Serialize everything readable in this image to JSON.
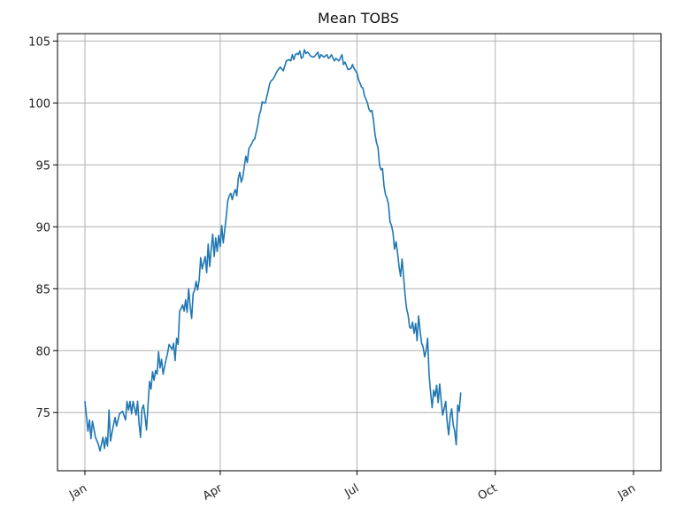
{
  "chart_data": {
    "type": "line",
    "title": "Mean TOBS",
    "xlabel": "",
    "ylabel": "",
    "x_unit": "day_of_year",
    "xlim": [
      1,
      366
    ],
    "ylim": [
      70.3,
      105.6
    ],
    "xticks": [
      {
        "label": "Jan",
        "day": 1
      },
      {
        "label": "Apr",
        "day": 91
      },
      {
        "label": "Jul",
        "day": 182
      },
      {
        "label": "Oct",
        "day": 274
      },
      {
        "label": "Jan",
        "day": 366
      }
    ],
    "yticks": [
      75,
      80,
      85,
      90,
      95,
      100,
      105
    ],
    "grid": true,
    "series": [
      {
        "color": "#1f77b4",
        "points": [
          [
            1,
            75.9
          ],
          [
            3,
            73.5
          ],
          [
            4,
            74.4
          ],
          [
            5,
            72.9
          ],
          [
            6,
            74.3
          ],
          [
            8,
            73.0
          ],
          [
            10,
            72.4
          ],
          [
            11,
            71.9
          ],
          [
            13,
            73.0
          ],
          [
            14,
            72.1
          ],
          [
            15,
            73.0
          ],
          [
            16,
            72.3
          ],
          [
            17,
            75.2
          ],
          [
            18,
            72.7
          ],
          [
            19,
            73.4
          ],
          [
            21,
            74.6
          ],
          [
            22,
            73.9
          ],
          [
            24,
            74.9
          ],
          [
            26,
            75.1
          ],
          [
            28,
            74.4
          ],
          [
            29,
            75.9
          ],
          [
            30,
            75.2
          ],
          [
            31,
            75.9
          ],
          [
            32,
            74.9
          ],
          [
            33,
            75.9
          ],
          [
            35,
            74.8
          ],
          [
            36,
            75.9
          ],
          [
            37,
            74.1
          ],
          [
            38,
            73.0
          ],
          [
            39,
            75.3
          ],
          [
            40,
            75.6
          ],
          [
            41,
            74.7
          ],
          [
            42,
            73.6
          ],
          [
            43,
            75.6
          ],
          [
            44,
            77.5
          ],
          [
            45,
            76.9
          ],
          [
            46,
            78.3
          ],
          [
            47,
            77.6
          ],
          [
            48,
            78.4
          ],
          [
            49,
            78.1
          ],
          [
            50,
            79.9
          ],
          [
            51,
            78.6
          ],
          [
            52,
            79.3
          ],
          [
            53,
            78.1
          ],
          [
            55,
            79.3
          ],
          [
            56,
            79.8
          ],
          [
            57,
            80.5
          ],
          [
            59,
            80.1
          ],
          [
            60,
            80.6
          ],
          [
            61,
            79.2
          ],
          [
            62,
            81.0
          ],
          [
            63,
            80.5
          ],
          [
            64,
            83.2
          ],
          [
            65,
            83.4
          ],
          [
            66,
            83.7
          ],
          [
            67,
            83.2
          ],
          [
            68,
            84.1
          ],
          [
            69,
            83.1
          ],
          [
            70,
            85.0
          ],
          [
            71,
            83.6
          ],
          [
            72,
            82.6
          ],
          [
            73,
            84.6
          ],
          [
            74,
            84.9
          ],
          [
            75,
            85.6
          ],
          [
            76,
            84.9
          ],
          [
            77,
            85.7
          ],
          [
            78,
            87.5
          ],
          [
            79,
            86.6
          ],
          [
            80,
            87.1
          ],
          [
            81,
            87.6
          ],
          [
            82,
            86.3
          ],
          [
            83,
            88.6
          ],
          [
            84,
            86.8
          ],
          [
            85,
            88.2
          ],
          [
            86,
            89.4
          ],
          [
            87,
            87.6
          ],
          [
            88,
            89.1
          ],
          [
            89,
            88.0
          ],
          [
            90,
            89.3
          ],
          [
            91,
            88.4
          ],
          [
            92,
            90.1
          ],
          [
            93,
            88.7
          ],
          [
            95,
            90.8
          ],
          [
            96,
            92.1
          ],
          [
            97,
            92.5
          ],
          [
            98,
            92.7
          ],
          [
            99,
            92.2
          ],
          [
            100,
            92.7
          ],
          [
            101,
            93.0
          ],
          [
            102,
            92.5
          ],
          [
            103,
            93.9
          ],
          [
            104,
            94.4
          ],
          [
            105,
            93.6
          ],
          [
            106,
            94.0
          ],
          [
            108,
            95.7
          ],
          [
            109,
            95.2
          ],
          [
            110,
            96.3
          ],
          [
            112,
            96.7
          ],
          [
            113,
            97.0
          ],
          [
            114,
            97.1
          ],
          [
            116,
            98.2
          ],
          [
            117,
            99.0
          ],
          [
            118,
            99.4
          ],
          [
            119,
            100.1
          ],
          [
            120,
            100.0
          ],
          [
            121,
            100.0
          ],
          [
            122,
            100.5
          ],
          [
            123,
            101.0
          ],
          [
            124,
            101.6
          ],
          [
            125,
            101.8
          ],
          [
            126,
            101.9
          ],
          [
            127,
            102.1
          ],
          [
            129,
            102.6
          ],
          [
            131,
            102.9
          ],
          [
            133,
            102.6
          ],
          [
            135,
            103.4
          ],
          [
            137,
            103.5
          ],
          [
            138,
            103.4
          ],
          [
            139,
            103.9
          ],
          [
            140,
            103.5
          ],
          [
            141,
            103.9
          ],
          [
            142,
            104.0
          ],
          [
            143,
            103.9
          ],
          [
            144,
            104.2
          ],
          [
            145,
            103.6
          ],
          [
            146,
            103.7
          ],
          [
            147,
            104.3
          ],
          [
            148,
            104.0
          ],
          [
            149,
            104.1
          ],
          [
            150,
            104.0
          ],
          [
            151,
            103.8
          ],
          [
            153,
            103.7
          ],
          [
            154,
            103.8
          ],
          [
            156,
            104.1
          ],
          [
            157,
            103.6
          ],
          [
            158,
            103.9
          ],
          [
            160,
            103.7
          ],
          [
            162,
            103.9
          ],
          [
            163,
            103.6
          ],
          [
            164,
            103.7
          ],
          [
            165,
            103.9
          ],
          [
            167,
            103.4
          ],
          [
            168,
            103.6
          ],
          [
            170,
            103.4
          ],
          [
            172,
            103.9
          ],
          [
            173,
            103.1
          ],
          [
            174,
            103.3
          ],
          [
            176,
            102.7
          ],
          [
            178,
            102.8
          ],
          [
            179,
            103.1
          ],
          [
            180,
            102.8
          ],
          [
            182,
            102.4
          ],
          [
            183,
            101.9
          ],
          [
            185,
            101.3
          ],
          [
            186,
            101.2
          ],
          [
            187,
            100.6
          ],
          [
            189,
            100.0
          ],
          [
            190,
            99.5
          ],
          [
            191,
            99.3
          ],
          [
            192,
            99.4
          ],
          [
            193,
            98.6
          ],
          [
            194,
            97.5
          ],
          [
            195,
            96.8
          ],
          [
            196,
            96.4
          ],
          [
            197,
            95.0
          ],
          [
            198,
            94.6
          ],
          [
            199,
            94.7
          ],
          [
            200,
            93.3
          ],
          [
            201,
            92.6
          ],
          [
            202,
            92.3
          ],
          [
            203,
            91.8
          ],
          [
            204,
            90.4
          ],
          [
            205,
            90.1
          ],
          [
            206,
            89.5
          ],
          [
            207,
            88.2
          ],
          [
            208,
            88.8
          ],
          [
            209,
            87.9
          ],
          [
            210,
            86.8
          ],
          [
            211,
            86.0
          ],
          [
            212,
            87.4
          ],
          [
            213,
            86.0
          ],
          [
            214,
            84.5
          ],
          [
            215,
            83.4
          ],
          [
            216,
            82.9
          ],
          [
            217,
            81.9
          ],
          [
            218,
            81.8
          ],
          [
            219,
            82.3
          ],
          [
            220,
            81.4
          ],
          [
            221,
            82.2
          ],
          [
            222,
            80.8
          ],
          [
            223,
            82.8
          ],
          [
            224,
            81.6
          ],
          [
            225,
            80.6
          ],
          [
            226,
            80.3
          ],
          [
            227,
            79.5
          ],
          [
            228,
            80.0
          ],
          [
            229,
            81.0
          ],
          [
            230,
            78.0
          ],
          [
            231,
            76.6
          ],
          [
            232,
            75.4
          ],
          [
            233,
            76.8
          ],
          [
            234,
            76.3
          ],
          [
            235,
            77.2
          ],
          [
            236,
            75.8
          ],
          [
            237,
            77.3
          ],
          [
            238,
            76.0
          ],
          [
            239,
            74.8
          ],
          [
            240,
            75.3
          ],
          [
            241,
            75.9
          ],
          [
            242,
            74.2
          ],
          [
            243,
            73.2
          ],
          [
            244,
            74.7
          ],
          [
            245,
            75.3
          ],
          [
            246,
            74.0
          ],
          [
            247,
            73.5
          ],
          [
            248,
            72.4
          ],
          [
            249,
            75.6
          ],
          [
            250,
            75.1
          ],
          [
            251,
            76.6
          ]
        ]
      }
    ]
  }
}
